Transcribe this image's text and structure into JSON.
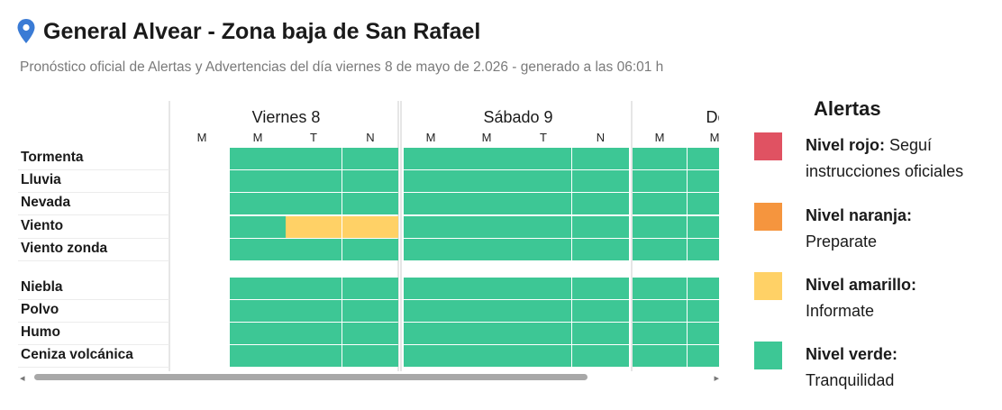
{
  "header": {
    "title": "General Alvear - Zona baja de San Rafael",
    "subtitle": "Pronóstico oficial de Alertas y Advertencias del día viernes 8 de mayo de 2.026 - generado a las 06:01 h"
  },
  "table": {
    "days": [
      "Viernes 8",
      "Sábado 9",
      "Do"
    ],
    "slots": [
      "M",
      "M",
      "T",
      "N",
      "M",
      "M",
      "T",
      "N",
      "M",
      "M"
    ],
    "rows_group1": [
      "Tormenta",
      "Lluvia",
      "Nevada",
      "Viento",
      "Viento zonda"
    ],
    "rows_group2": [
      "Niebla",
      "Polvo",
      "Humo",
      "Ceniza volcánica"
    ],
    "levels": {
      "Tormenta": [
        "none",
        "verde",
        "verde",
        "verde",
        "verde",
        "verde",
        "verde",
        "verde",
        "verde",
        "verde"
      ],
      "Lluvia": [
        "none",
        "verde",
        "verde",
        "verde",
        "verde",
        "verde",
        "verde",
        "verde",
        "verde",
        "verde"
      ],
      "Nevada": [
        "none",
        "verde",
        "verde",
        "verde",
        "verde",
        "verde",
        "verde",
        "verde",
        "verde",
        "verde"
      ],
      "Viento": [
        "none",
        "verde",
        "amarillo",
        "amarillo",
        "verde",
        "verde",
        "verde",
        "verde",
        "verde",
        "verde"
      ],
      "Viento zonda": [
        "none",
        "verde",
        "verde",
        "verde",
        "verde",
        "verde",
        "verde",
        "verde",
        "verde",
        "verde"
      ],
      "Niebla": [
        "none",
        "verde",
        "verde",
        "verde",
        "verde",
        "verde",
        "verde",
        "verde",
        "verde",
        "verde"
      ],
      "Polvo": [
        "none",
        "verde",
        "verde",
        "verde",
        "verde",
        "verde",
        "verde",
        "verde",
        "verde",
        "verde"
      ],
      "Humo": [
        "none",
        "verde",
        "verde",
        "verde",
        "verde",
        "verde",
        "verde",
        "verde",
        "verde",
        "verde"
      ],
      "Ceniza volcánica": [
        "none",
        "verde",
        "verde",
        "verde",
        "verde",
        "verde",
        "verde",
        "verde",
        "verde",
        "verde"
      ]
    }
  },
  "legend": {
    "title": "Alertas",
    "items": [
      {
        "name": "Nivel rojo:",
        "desc": "Seguí instrucciones oficiales",
        "color": "#e05262",
        "key": "rojo"
      },
      {
        "name": "Nivel naranja:",
        "desc": "Preparate",
        "color": "#f5953e",
        "key": "naranja"
      },
      {
        "name": "Nivel amarillo:",
        "desc": "Informate",
        "color": "#ffd166",
        "key": "amarillo"
      },
      {
        "name": "Nivel verde:",
        "desc": "Tranquilidad",
        "color": "#3dc795",
        "key": "verde"
      }
    ]
  },
  "scrollbar": {
    "left_arrow": "◂",
    "right_arrow": "▸"
  },
  "icons": {
    "location": "map-pin-icon"
  }
}
